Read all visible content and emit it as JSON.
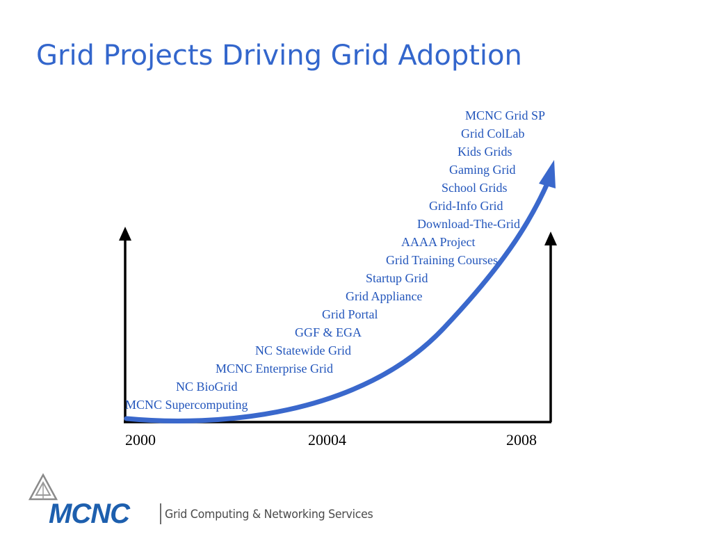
{
  "slide": {
    "title": "Grid Projects Driving Grid Adoption"
  },
  "timeline": {
    "years": [
      "2000",
      "20004",
      "2008"
    ],
    "projects": [
      "MCNC Grid SP",
      "Grid ColLab",
      "Kids Grids",
      "Gaming Grid",
      "School Grids",
      "Grid-Info Grid",
      "Download-The-Grid",
      "AAAA Project",
      "Grid Training Courses",
      "Startup Grid",
      "Grid Appliance",
      "Grid Portal",
      "GGF & EGA",
      "NC Statewide Grid",
      "MCNC Enterprise Grid",
      "NC BioGrid",
      "MCNC Supercomputing"
    ]
  },
  "footer": {
    "brand": "MCNC",
    "tagline": "Grid Computing & Networking Services"
  },
  "colors": {
    "title": "#3366cc",
    "project_text": "#2255bb",
    "growth_curve": "#3a68cc",
    "axis": "#000000",
    "brand": "#1d5fae"
  },
  "icons": {
    "growth_curve": "curved-arrow-icon",
    "axis_arrow": "up-arrow-icon",
    "logo_mark": "triangle-logo-icon"
  }
}
